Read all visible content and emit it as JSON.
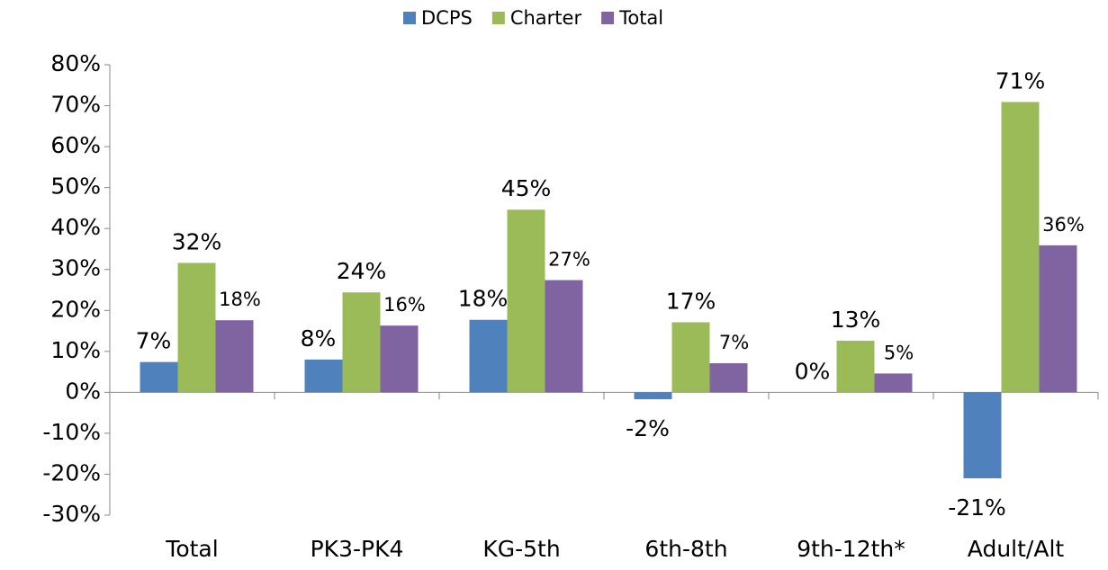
{
  "chart_data": {
    "type": "bar",
    "categories": [
      "Total",
      "PK3-PK4",
      "KG-5th",
      "6th-8th",
      "9th-12th*",
      "Adult/Alt"
    ],
    "series": [
      {
        "name": "DCPS",
        "color": "#4f81bd",
        "values": [
          7.4,
          8.0,
          17.7,
          -1.7,
          0,
          -21.0
        ],
        "value_labels": [
          "7%",
          "8%",
          "18%",
          "-2%",
          "0%",
          "-21%"
        ]
      },
      {
        "name": "Charter",
        "color": "#9bbb59",
        "values": [
          31.6,
          24.4,
          44.6,
          17.1,
          12.6,
          70.9
        ],
        "value_labels": [
          "32%",
          "24%",
          "45%",
          "17%",
          "13%",
          "71%"
        ]
      },
      {
        "name": "Total",
        "color": "#8064a2",
        "values": [
          17.6,
          16.3,
          27.4,
          7.1,
          4.6,
          35.9
        ],
        "value_labels": [
          "18%",
          "16%",
          "27%",
          "7%",
          "5%",
          "36%"
        ]
      }
    ],
    "ylim": [
      -30,
      80
    ],
    "yticks": [
      {
        "value": -30,
        "label": "-30%"
      },
      {
        "value": -20,
        "label": "-20%"
      },
      {
        "value": -10,
        "label": "-10%"
      },
      {
        "value": 0,
        "label": "0%"
      },
      {
        "value": 10,
        "label": "10%"
      },
      {
        "value": 20,
        "label": "20%"
      },
      {
        "value": 30,
        "label": "30%"
      },
      {
        "value": 40,
        "label": "40%"
      },
      {
        "value": 50,
        "label": "50%"
      },
      {
        "value": 60,
        "label": "60%"
      },
      {
        "value": 70,
        "label": "70%"
      },
      {
        "value": 80,
        "label": "80%"
      }
    ],
    "legend": "top"
  }
}
